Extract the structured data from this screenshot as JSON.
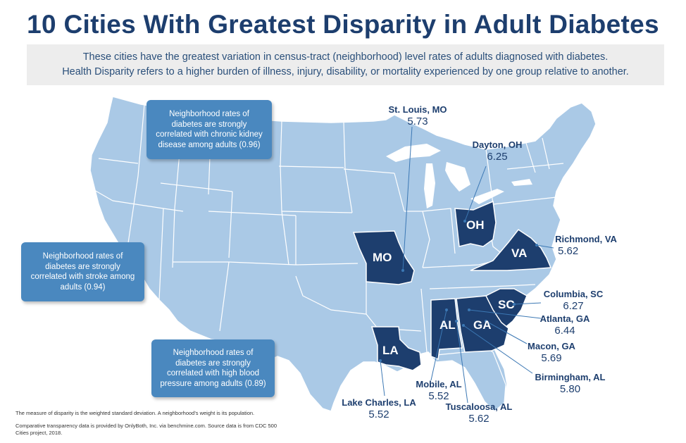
{
  "title": "10 Cities With Greatest Disparity in Adult Diabetes",
  "subtitle": [
    "These cities have the greatest variation in census-tract (neighborhood) level rates of adults diagnosed with diabetes.",
    "Health Disparity refers to a higher burden of illness, injury, disability, or mortality experienced by one group relative to another."
  ],
  "callouts": {
    "kidney": "Neighborhood rates of diabetes are strongly correlated with chronic kidney disease among adults (0.96)",
    "stroke": "Neighborhood rates of diabetes are strongly correlated with stroke among adults (0.94)",
    "blood_pressure": "Neighborhood rates of diabetes are strongly correlated with high blood pressure among adults (0.89)"
  },
  "states": {
    "mo": "MO",
    "oh": "OH",
    "va": "VA",
    "sc": "SC",
    "al": "AL",
    "ga": "GA",
    "la": "LA"
  },
  "cities": {
    "st_louis": {
      "name": "St. Louis, MO",
      "value": "5.73"
    },
    "dayton": {
      "name": "Dayton, OH",
      "value": "6.25"
    },
    "richmond": {
      "name": "Richmond, VA",
      "value": "5.62"
    },
    "columbia": {
      "name": "Columbia, SC",
      "value": "6.27"
    },
    "atlanta": {
      "name": "Atlanta, GA",
      "value": "6.44"
    },
    "macon": {
      "name": "Macon, GA",
      "value": "5.69"
    },
    "birmingham": {
      "name": "Birmingham, AL",
      "value": "5.80"
    },
    "tuscaloosa": {
      "name": "Tuscaloosa, AL",
      "value": "5.62"
    },
    "mobile": {
      "name": "Mobile, AL",
      "value": "5.52"
    },
    "lake_charles": {
      "name": "Lake Charles, LA",
      "value": "5.52"
    }
  },
  "colors": {
    "title": "#1d3e6e",
    "state_fill": "#aac9e6",
    "highlight_fill": "#1d3e6e",
    "callout_fill": "#4a88bf",
    "subtitle_bg": "#ededed"
  },
  "footnotes": {
    "measure": "The measure of disparity is the weighted standard deviation. A neighborhood's weight is its population.",
    "source_1": "Comparative transparency data is provided by OnlyBoth, Inc. via benchmine.com. Source data is from CDC 500",
    "source_2": "Cities project, 2018."
  }
}
